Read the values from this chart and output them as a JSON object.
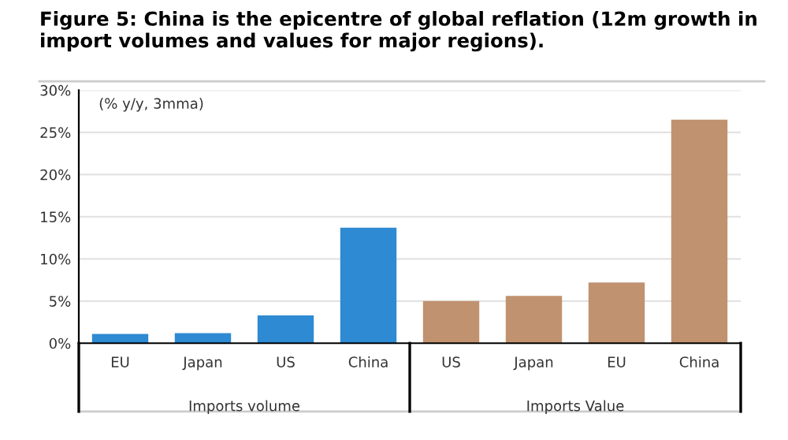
{
  "chart_data": {
    "type": "bar",
    "title": "Figure 5: China is the epicentre of global reflation (12m growth in import volumes and values for major regions).",
    "categories": [
      "EU",
      "Japan",
      "US",
      "China",
      "US",
      "Japan",
      "EU",
      "China"
    ],
    "values": [
      1.1,
      1.2,
      3.3,
      13.7,
      5.0,
      5.6,
      7.2,
      26.5
    ],
    "colors": [
      "#2e8ad2",
      "#2e8ad2",
      "#2e8ad2",
      "#2e8ad2",
      "#c09270",
      "#c09270",
      "#c09270",
      "#c09270"
    ],
    "annotations": [
      "(% y/y, 3mma)",
      "Imports volume",
      "Imports Value"
    ],
    "ylim": [
      0,
      30
    ],
    "yticks": [
      {
        "value": 0,
        "label": "0%"
      },
      {
        "value": 5,
        "label": "5%"
      },
      {
        "value": 10,
        "label": "10%"
      },
      {
        "value": 15,
        "label": "15%"
      },
      {
        "value": 20,
        "label": "20%"
      },
      {
        "value": 25,
        "label": "25%"
      },
      {
        "value": 30,
        "label": "30%"
      }
    ],
    "grid": "y",
    "legend": false
  }
}
